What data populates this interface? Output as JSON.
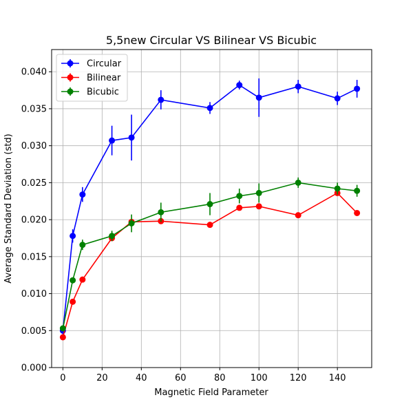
{
  "chart_data": {
    "type": "line",
    "title": "5,5new Circular VS Bilinear VS Bicubic",
    "xlabel": "Magnetic Field Parameter",
    "ylabel": "Average Standard Deviation (std)",
    "xlim": [
      -5.75,
      157.5
    ],
    "ylim": [
      0,
      0.043
    ],
    "xticks": [
      0,
      20,
      40,
      60,
      80,
      100,
      120,
      140
    ],
    "xtick_labels": [
      "0",
      "20",
      "40",
      "60",
      "80",
      "100",
      "120",
      "140"
    ],
    "yticks": [
      0,
      0.005,
      0.01,
      0.015,
      0.02,
      0.025,
      0.03,
      0.035,
      0.04
    ],
    "ytick_labels": [
      "0.000",
      "0.005",
      "0.010",
      "0.015",
      "0.020",
      "0.025",
      "0.030",
      "0.035",
      "0.040"
    ],
    "grid": true,
    "legend_position": "top-left",
    "x": [
      0,
      5,
      10,
      25,
      35,
      50,
      75,
      90,
      100,
      120,
      140,
      150
    ],
    "series": [
      {
        "name": "Circular",
        "color": "#0000ff",
        "values": [
          0.005,
          0.0178,
          0.0234,
          0.0307,
          0.0311,
          0.0362,
          0.0351,
          0.0382,
          0.0365,
          0.038,
          0.0364,
          0.0377
        ],
        "errors": [
          0.0005,
          0.0009,
          0.001,
          0.002,
          0.0031,
          0.0013,
          0.0008,
          0.0006,
          0.0026,
          0.0009,
          0.0009,
          0.0012
        ]
      },
      {
        "name": "Bilinear",
        "color": "#ff0000",
        "values": [
          0.0041,
          0.0089,
          0.0119,
          0.0175,
          0.0197,
          0.0198,
          0.0193,
          0.0216,
          0.0218,
          0.0206,
          0.0236,
          0.0209
        ],
        "errors": [
          0.0003,
          0.0003,
          0.0003,
          0.0003,
          0.0003,
          0.0003,
          0.0003,
          0.0003,
          0.0003,
          0.0003,
          0.0003,
          0.0003
        ]
      },
      {
        "name": "Bicubic",
        "color": "#008000",
        "values": [
          0.0053,
          0.0118,
          0.0166,
          0.0178,
          0.0195,
          0.021,
          0.0221,
          0.0232,
          0.0236,
          0.025,
          0.0242,
          0.0239
        ],
        "errors": [
          0.0003,
          0.0003,
          0.0007,
          0.0007,
          0.0012,
          0.0013,
          0.0015,
          0.001,
          0.0013,
          0.0007,
          0.0008,
          0.0008
        ]
      }
    ]
  }
}
